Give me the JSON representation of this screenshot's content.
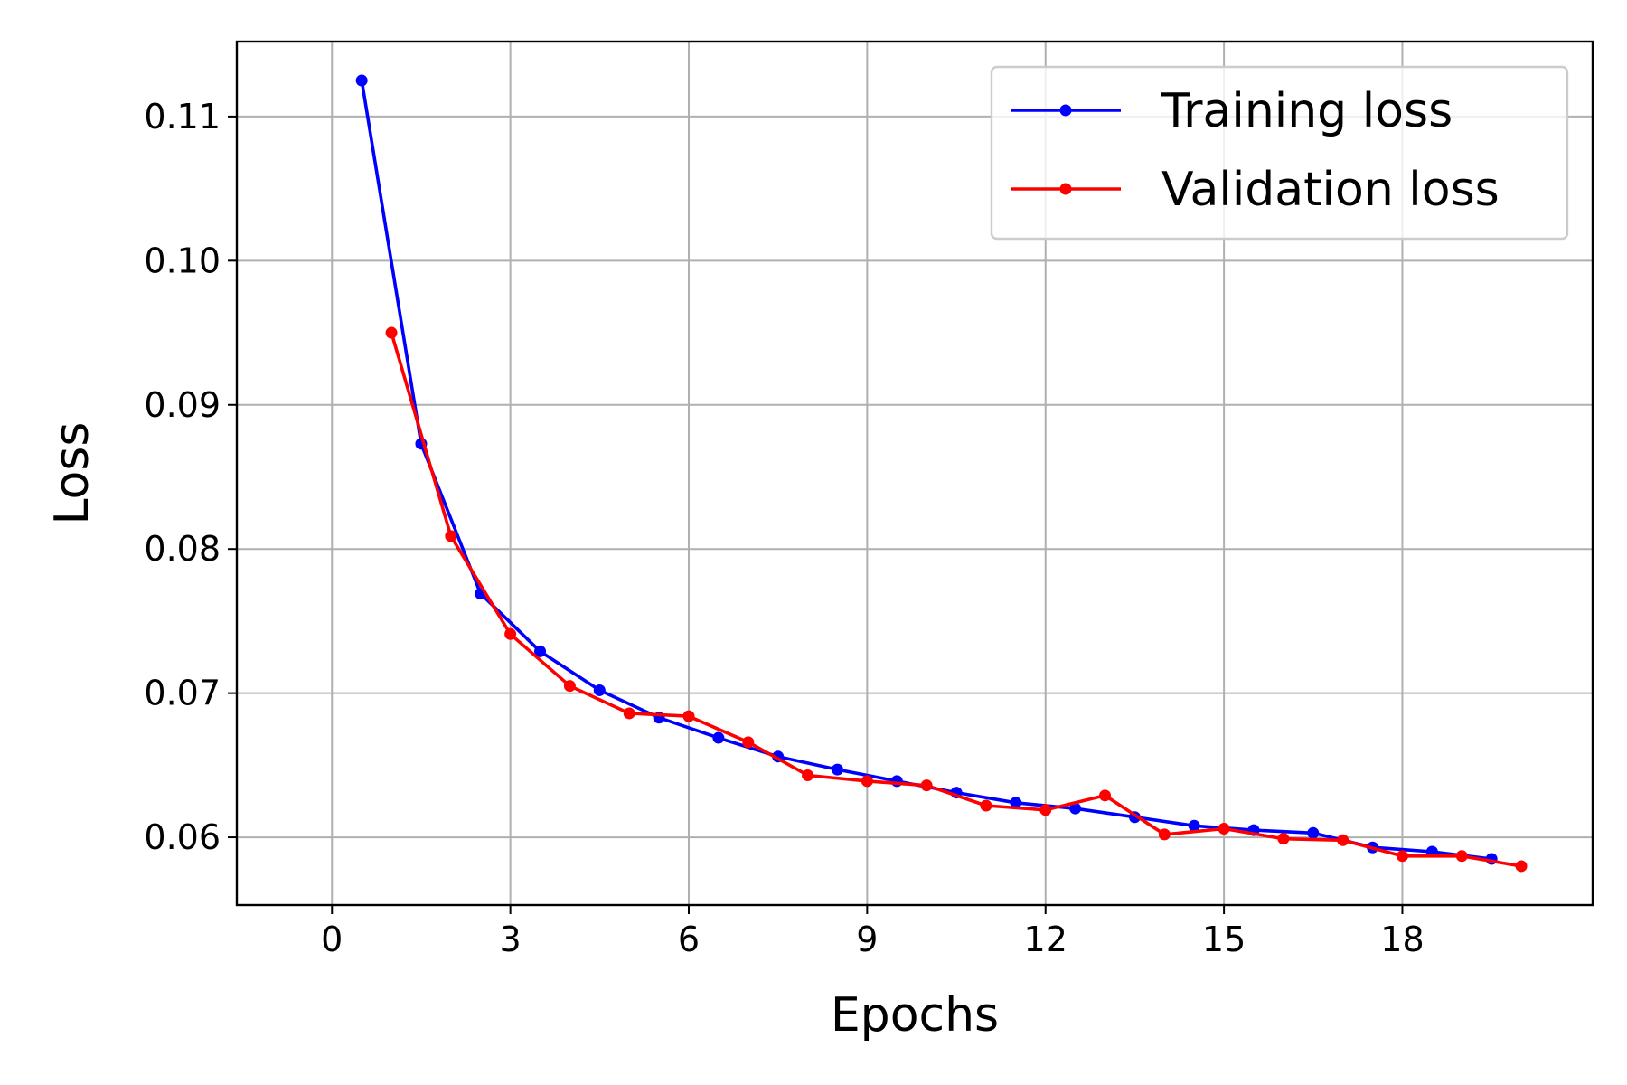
{
  "chart_data": {
    "type": "line",
    "title": "",
    "xlabel": "Epochs",
    "ylabel": "Loss",
    "xlim": [
      -1.6,
      21.2
    ],
    "ylim": [
      0.0553,
      0.1152
    ],
    "xticks": [
      0,
      3,
      6,
      9,
      12,
      15,
      18
    ],
    "xtick_labels": [
      "0",
      "3",
      "6",
      "9",
      "12",
      "15",
      "18"
    ],
    "yticks": [
      0.06,
      0.07,
      0.08,
      0.09,
      0.1,
      0.11
    ],
    "ytick_labels": [
      "0.06",
      "0.07",
      "0.08",
      "0.09",
      "0.10",
      "0.11"
    ],
    "grid": true,
    "legend_position": "top-right",
    "series": [
      {
        "name": "Training loss",
        "color": "#0000ff",
        "x": [
          0.5,
          1.5,
          2.5,
          3.5,
          4.5,
          5.5,
          6.5,
          7.5,
          8.5,
          9.5,
          10.5,
          11.5,
          12.5,
          13.5,
          14.5,
          15.5,
          16.5,
          17.5,
          18.5,
          19.5
        ],
        "y": [
          0.1125,
          0.0873,
          0.0769,
          0.0729,
          0.0702,
          0.0683,
          0.0669,
          0.0656,
          0.0647,
          0.0639,
          0.0631,
          0.0624,
          0.062,
          0.0614,
          0.0608,
          0.0605,
          0.0603,
          0.0593,
          0.059,
          0.0585
        ]
      },
      {
        "name": "Validation loss",
        "color": "#ff0000",
        "x": [
          1,
          2,
          3,
          4,
          5,
          6,
          7,
          8,
          9,
          10,
          11,
          12,
          13,
          14,
          15,
          16,
          17,
          18,
          19,
          20
        ],
        "y": [
          0.095,
          0.0809,
          0.0741,
          0.0705,
          0.0686,
          0.0684,
          0.0666,
          0.0643,
          0.0639,
          0.0636,
          0.0622,
          0.0619,
          0.0629,
          0.0602,
          0.0606,
          0.0599,
          0.0598,
          0.0587,
          0.0587,
          0.058
        ]
      }
    ]
  }
}
